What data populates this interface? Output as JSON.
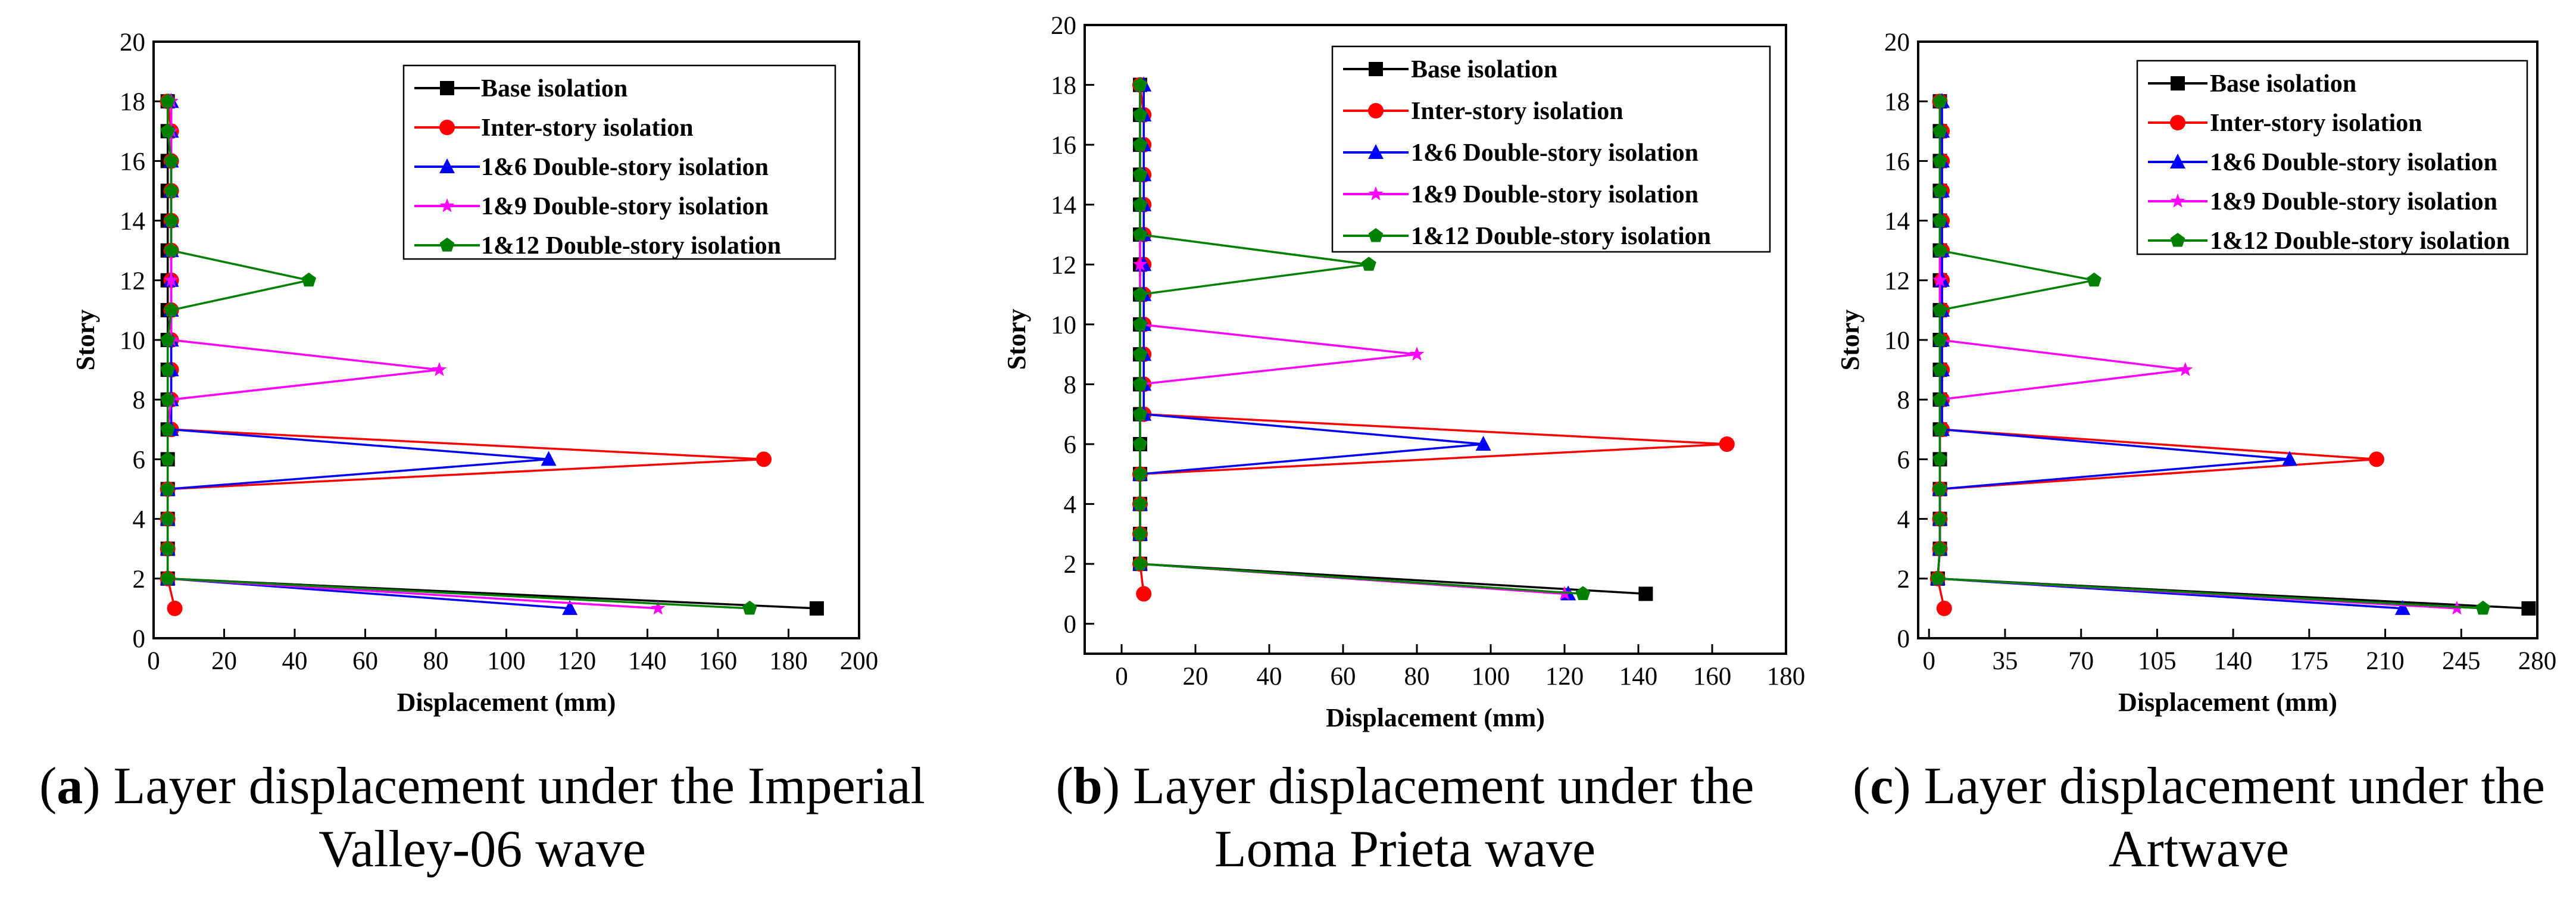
{
  "series_styles": [
    {
      "name": "Base isolation",
      "color": "#000000",
      "marker": "square"
    },
    {
      "name": "Inter-story isolation",
      "color": "#ff0000",
      "marker": "circle"
    },
    {
      "name": "1&6 Double-story isolation",
      "color": "#0000ff",
      "marker": "triangle"
    },
    {
      "name": "1&9 Double-story isolation",
      "color": "#ff00ff",
      "marker": "star"
    },
    {
      "name": "1&12 Double-story isolation",
      "color": "#008000",
      "marker": "pentagon"
    }
  ],
  "captions": [
    {
      "letter": "a",
      "line1": ") Layer displacement under the Imperial",
      "line2": "Valley-06 wave"
    },
    {
      "letter": "b",
      "line1": ") Layer displacement under the",
      "line2": "Loma Prieta wave"
    },
    {
      "letter": "c",
      "line1": ") Layer displacement under the",
      "line2": "Artwave"
    }
  ],
  "chart_data": [
    {
      "type": "line",
      "title": "",
      "xlabel": "Displacement (mm)",
      "ylabel": "Story",
      "xlim": [
        0,
        200
      ],
      "ylim": [
        0,
        20
      ],
      "xticks": [
        0,
        20,
        40,
        60,
        80,
        100,
        120,
        140,
        160,
        180,
        200
      ],
      "yticks": [
        0,
        2,
        4,
        6,
        8,
        10,
        12,
        14,
        16,
        18,
        20
      ],
      "legend_position": "top-right",
      "series": [
        {
          "name": "Base isolation",
          "y": [
            1,
            2,
            3,
            4,
            5,
            6,
            7,
            8,
            9,
            10,
            11,
            12,
            13,
            14,
            15,
            16,
            17,
            18
          ],
          "x": [
            188,
            4,
            4,
            4,
            4,
            4,
            4,
            4,
            4,
            4,
            4,
            4,
            4,
            4,
            4,
            4,
            4,
            4
          ]
        },
        {
          "name": "Inter-story isolation",
          "y": [
            1,
            2,
            3,
            4,
            5,
            6,
            7,
            8,
            9,
            10,
            11,
            12,
            13,
            14,
            15,
            16,
            17,
            18
          ],
          "x": [
            6,
            4,
            4,
            4,
            4,
            173,
            5,
            5,
            5,
            5,
            5,
            5,
            5,
            5,
            5,
            5,
            5,
            4
          ]
        },
        {
          "name": "1&6 Double-story isolation",
          "y": [
            1,
            2,
            3,
            4,
            5,
            6,
            7,
            8,
            9,
            10,
            11,
            12,
            13,
            14,
            15,
            16,
            17,
            18
          ],
          "x": [
            118,
            4,
            4,
            4,
            4,
            112,
            5,
            5,
            5,
            5,
            5,
            5,
            5,
            5,
            5,
            5,
            5,
            5
          ]
        },
        {
          "name": "1&9 Double-story isolation",
          "y": [
            1,
            2,
            3,
            4,
            5,
            6,
            7,
            8,
            9,
            10,
            11,
            12,
            13,
            14,
            15,
            16,
            17,
            18
          ],
          "x": [
            143,
            4,
            4,
            4,
            4,
            4,
            4,
            5,
            81,
            5,
            5,
            5,
            5,
            5,
            5,
            5,
            5,
            5
          ]
        },
        {
          "name": "1&12 Double-story isolation",
          "y": [
            1,
            2,
            3,
            4,
            5,
            6,
            7,
            8,
            9,
            10,
            11,
            12,
            13,
            14,
            15,
            16,
            17,
            18
          ],
          "x": [
            169,
            4,
            4,
            4,
            4,
            4,
            4,
            4,
            4,
            4,
            5,
            44,
            5,
            5,
            5,
            5,
            4,
            4
          ]
        }
      ]
    },
    {
      "type": "line",
      "title": "",
      "xlabel": "Displacement (mm)",
      "ylabel": "Story",
      "xlim": [
        -10,
        180
      ],
      "ylim": [
        -1,
        20
      ],
      "xticks": [
        0,
        20,
        40,
        60,
        80,
        100,
        120,
        140,
        160,
        180
      ],
      "yticks": [
        0,
        2,
        4,
        6,
        8,
        10,
        12,
        14,
        16,
        18,
        20
      ],
      "legend_position": "top-right",
      "series": [
        {
          "name": "Base isolation",
          "y": [
            1,
            2,
            3,
            4,
            5,
            6,
            7,
            8,
            9,
            10,
            11,
            12,
            13,
            14,
            15,
            16,
            17,
            18
          ],
          "x": [
            142,
            5,
            5,
            5,
            5,
            5,
            5,
            5,
            5,
            5,
            5,
            5,
            5,
            5,
            5,
            5,
            5,
            5
          ]
        },
        {
          "name": "Inter-story isolation",
          "y": [
            1,
            2,
            3,
            4,
            5,
            6,
            7,
            8,
            9,
            10,
            11,
            12,
            13,
            14,
            15,
            16,
            17,
            18
          ],
          "x": [
            6,
            5,
            5,
            5,
            5,
            164,
            6,
            6,
            6,
            6,
            6,
            6,
            6,
            6,
            6,
            6,
            6,
            5
          ]
        },
        {
          "name": "1&6 Double-story isolation",
          "y": [
            1,
            2,
            3,
            4,
            5,
            6,
            7,
            8,
            9,
            10,
            11,
            12,
            13,
            14,
            15,
            16,
            17,
            18
          ],
          "x": [
            121,
            5,
            5,
            5,
            5,
            98,
            6,
            6,
            6,
            6,
            6,
            6,
            6,
            6,
            6,
            6,
            6,
            6
          ]
        },
        {
          "name": "1&9 Double-story isolation",
          "y": [
            1,
            2,
            3,
            4,
            5,
            6,
            7,
            8,
            9,
            10,
            11,
            12,
            13,
            14,
            15,
            16,
            17,
            18
          ],
          "x": [
            120,
            5,
            5,
            5,
            5,
            5,
            5,
            5,
            80,
            5,
            5,
            5,
            5,
            5,
            5,
            5,
            5,
            5
          ]
        },
        {
          "name": "1&12 Double-story isolation",
          "y": [
            1,
            2,
            3,
            4,
            5,
            6,
            7,
            8,
            9,
            10,
            11,
            12,
            13,
            14,
            15,
            16,
            17,
            18
          ],
          "x": [
            125,
            5,
            5,
            5,
            5,
            5,
            5,
            5,
            5,
            5,
            5,
            67,
            5,
            5,
            5,
            5,
            5,
            5
          ]
        }
      ]
    },
    {
      "type": "line",
      "title": "",
      "xlabel": "Displacement (mm)",
      "ylabel": "Story",
      "xlim": [
        -5,
        280
      ],
      "ylim": [
        0,
        20
      ],
      "xticks": [
        0,
        35,
        70,
        105,
        140,
        175,
        210,
        245,
        280
      ],
      "yticks": [
        0,
        2,
        4,
        6,
        8,
        10,
        12,
        14,
        16,
        18,
        20
      ],
      "legend_position": "top-right",
      "series": [
        {
          "name": "Base isolation",
          "y": [
            1,
            2,
            3,
            4,
            5,
            6,
            7,
            8,
            9,
            10,
            11,
            12,
            13,
            14,
            15,
            16,
            17,
            18
          ],
          "x": [
            276,
            4,
            5,
            5,
            5,
            5,
            5,
            5,
            5,
            5,
            5,
            5,
            5,
            5,
            5,
            5,
            5,
            5
          ]
        },
        {
          "name": "Inter-story isolation",
          "y": [
            1,
            2,
            3,
            4,
            5,
            6,
            7,
            8,
            9,
            10,
            11,
            12,
            13,
            14,
            15,
            16,
            17,
            18
          ],
          "x": [
            7,
            4,
            5,
            5,
            5,
            206,
            6,
            6,
            6,
            6,
            6,
            6,
            6,
            6,
            6,
            6,
            6,
            5
          ]
        },
        {
          "name": "1&6 Double-story isolation",
          "y": [
            1,
            2,
            3,
            4,
            5,
            6,
            7,
            8,
            9,
            10,
            11,
            12,
            13,
            14,
            15,
            16,
            17,
            18
          ],
          "x": [
            218,
            4,
            5,
            5,
            5,
            166,
            6,
            6,
            6,
            6,
            6,
            6,
            6,
            6,
            6,
            6,
            6,
            6
          ]
        },
        {
          "name": "1&9 Double-story isolation",
          "y": [
            1,
            2,
            3,
            4,
            5,
            6,
            7,
            8,
            9,
            10,
            11,
            12,
            13,
            14,
            15,
            16,
            17,
            18
          ],
          "x": [
            243,
            4,
            5,
            5,
            5,
            5,
            5,
            5,
            118,
            5,
            5,
            5,
            5,
            5,
            5,
            5,
            5,
            5
          ]
        },
        {
          "name": "1&12 Double-story isolation",
          "y": [
            1,
            2,
            3,
            4,
            5,
            6,
            7,
            8,
            9,
            10,
            11,
            12,
            13,
            14,
            15,
            16,
            17,
            18
          ],
          "x": [
            255,
            4,
            5,
            5,
            5,
            5,
            5,
            5,
            5,
            5,
            5,
            76,
            5,
            5,
            5,
            5,
            5,
            5
          ]
        }
      ]
    }
  ]
}
